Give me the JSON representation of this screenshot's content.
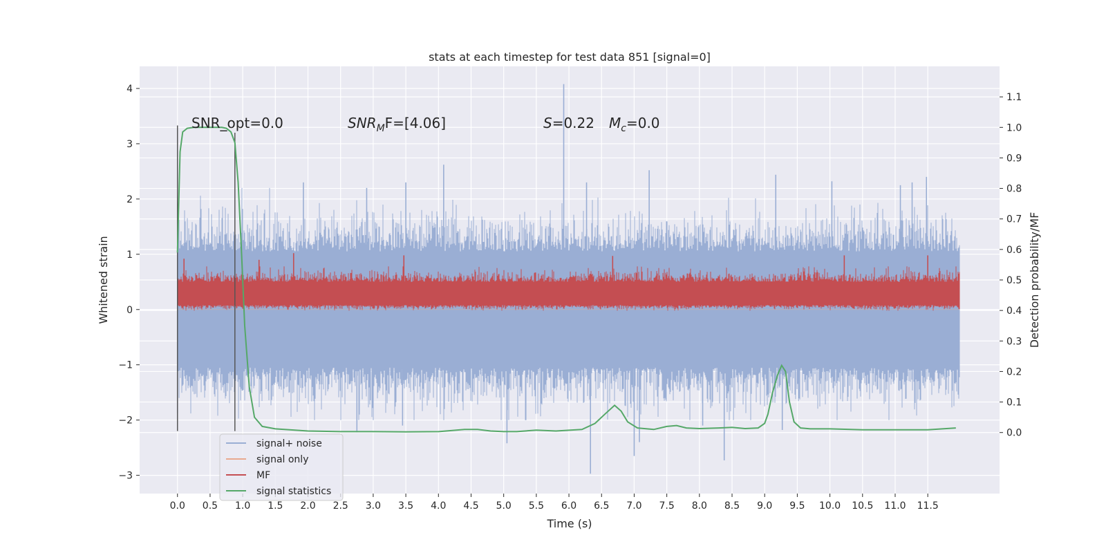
{
  "chart_data": {
    "type": "line",
    "title": "stats at each timestep for test data 851 [signal=0]",
    "xlabel": "Time (s)",
    "ylabel": "Whitened strain",
    "y2label": "Detection probability/MF",
    "xlim": [
      -0.58,
      12.6
    ],
    "ylim": [
      -3.33,
      4.4
    ],
    "y2lim": [
      -0.2,
      1.2
    ],
    "x_ticks": [
      0.0,
      0.5,
      1.0,
      1.5,
      2.0,
      2.5,
      3.0,
      3.5,
      4.0,
      4.5,
      5.0,
      5.5,
      6.0,
      6.5,
      7.0,
      7.5,
      8.0,
      8.5,
      9.0,
      9.5,
      10.0,
      10.5,
      11.0,
      11.5
    ],
    "x_tick_labels": [
      "0.0",
      "0.5",
      "1.0",
      "1.5",
      "2.0",
      "2.5",
      "3.0",
      "3.5",
      "4.0",
      "4.5",
      "5.0",
      "5.5",
      "6.0",
      "6.5",
      "7.0",
      "7.5",
      "8.0",
      "8.5",
      "9.0",
      "9.5",
      "10.0",
      "10.5",
      "11.0",
      "11.5"
    ],
    "y_ticks": [
      -3,
      -2,
      -1,
      0,
      1,
      2,
      3,
      4
    ],
    "y_tick_labels": [
      "−3",
      "−2",
      "−1",
      "0",
      "1",
      "2",
      "3",
      "4"
    ],
    "y2_ticks": [
      0.0,
      0.1,
      0.2,
      0.3,
      0.4,
      0.5,
      0.6,
      0.7,
      0.8,
      0.9,
      1.0,
      1.1
    ],
    "y2_tick_labels": [
      "0.0",
      "0.1",
      "0.2",
      "0.3",
      "0.4",
      "0.5",
      "0.6",
      "0.7",
      "0.8",
      "0.9",
      "1.0",
      "1.1"
    ],
    "grid": true,
    "legend_position": "lower-left",
    "colors": {
      "background": "#eaeaf2",
      "grid": "#ffffff",
      "signal_noise": "#9aaed4",
      "signal_only": "#e8a98e",
      "mf": "#c44e52",
      "statistics": "#55a868",
      "marker": "#555555"
    },
    "annotations": {
      "snr_opt": "SNR_opt=0.0",
      "snr_mf_prefix": "SNR",
      "snr_mf_sub": "M",
      "snr_mf_suffix": "F=[4.06]",
      "s_stat_var": "S",
      "s_stat_val": "=0.22",
      "mc_var": "M",
      "mc_sub": "c",
      "mc_val": "=0.0"
    },
    "series": [
      {
        "name": "signal+ noise",
        "axis": "left",
        "description_envelope": {
          "x_range": [
            0.0,
            11.99
          ],
          "typical_low": -1.2,
          "typical_high": 1.3
        },
        "peaks": [
          {
            "x": 5.92,
            "y": 4.08
          },
          {
            "x": 4.08,
            "y": 2.62
          },
          {
            "x": 9.17,
            "y": 2.44
          },
          {
            "x": 7.23,
            "y": 2.52
          },
          {
            "x": 11.48,
            "y": 2.4
          },
          {
            "x": 10.03,
            "y": 2.32
          },
          {
            "x": 1.93,
            "y": 2.3
          },
          {
            "x": 3.5,
            "y": 2.3
          },
          {
            "x": 6.27,
            "y": 2.3
          },
          {
            "x": 11.08,
            "y": 2.25
          },
          {
            "x": 11.26,
            "y": 2.3
          },
          {
            "x": 2.9,
            "y": 2.2
          },
          {
            "x": 6.33,
            "y": -2.97
          },
          {
            "x": 8.38,
            "y": -2.73
          },
          {
            "x": 7.0,
            "y": -2.65
          },
          {
            "x": 5.05,
            "y": -2.42
          },
          {
            "x": 7.08,
            "y": -2.4
          },
          {
            "x": 2.75,
            "y": -2.22
          },
          {
            "x": 3.45,
            "y": -2.1
          },
          {
            "x": 8.05,
            "y": -2.1
          },
          {
            "x": 0.0,
            "y": -1.88
          },
          {
            "x": 9.27,
            "y": -2.18
          }
        ]
      },
      {
        "name": "signal only",
        "axis": "left",
        "values_note": "",
        "x": [
          0.0,
          11.99
        ],
        "y": [
          0.0,
          0.0
        ]
      },
      {
        "name": "MF",
        "axis": "left",
        "description_envelope": {
          "x_range": [
            0.0,
            11.99
          ],
          "typical_low": 0.02,
          "typical_high": 0.6
        },
        "peaks": [
          {
            "x": 1.78,
            "y": 1.02
          },
          {
            "x": 6.67,
            "y": 0.97
          },
          {
            "x": 3.47,
            "y": 0.98
          },
          {
            "x": 1.25,
            "y": 0.9
          },
          {
            "x": 10.22,
            "y": 0.98
          },
          {
            "x": 11.5,
            "y": 0.98
          },
          {
            "x": 0.1,
            "y": 0.92
          }
        ]
      },
      {
        "name": "signal statistics",
        "axis": "right",
        "x": [
          0.0,
          0.04,
          0.08,
          0.15,
          0.25,
          0.4,
          0.55,
          0.68,
          0.75,
          0.82,
          0.88,
          0.93,
          0.98,
          1.03,
          1.1,
          1.18,
          1.3,
          1.5,
          2.0,
          2.5,
          3.0,
          3.5,
          4.0,
          4.4,
          4.6,
          4.8,
          5.0,
          5.2,
          5.5,
          5.8,
          6.2,
          6.4,
          6.55,
          6.7,
          6.8,
          6.9,
          7.05,
          7.3,
          7.5,
          7.65,
          7.8,
          8.0,
          8.3,
          8.5,
          8.7,
          8.9,
          9.0,
          9.05,
          9.12,
          9.2,
          9.26,
          9.32,
          9.38,
          9.45,
          9.55,
          9.7,
          10.0,
          10.5,
          11.0,
          11.5,
          11.93
        ],
        "y": [
          0.59,
          0.92,
          0.985,
          0.997,
          1.0,
          1.0,
          1.0,
          1.0,
          0.997,
          0.985,
          0.95,
          0.82,
          0.6,
          0.35,
          0.15,
          0.05,
          0.02,
          0.012,
          0.005,
          0.003,
          0.003,
          0.002,
          0.003,
          0.01,
          0.01,
          0.005,
          0.003,
          0.003,
          0.008,
          0.005,
          0.01,
          0.03,
          0.06,
          0.089,
          0.07,
          0.035,
          0.015,
          0.01,
          0.02,
          0.023,
          0.015,
          0.013,
          0.015,
          0.017,
          0.013,
          0.015,
          0.03,
          0.06,
          0.13,
          0.19,
          0.22,
          0.2,
          0.1,
          0.035,
          0.015,
          0.012,
          0.012,
          0.009,
          0.009,
          0.009,
          0.015
        ]
      }
    ],
    "vertical_markers": [
      {
        "x": 0.0,
        "y_from": -2.2,
        "y_to": 3.33
      },
      {
        "x": 0.88,
        "y_from": -2.2,
        "y_to": 3.2
      }
    ],
    "legend": [
      {
        "label": "signal+ noise",
        "series": "signal+ noise"
      },
      {
        "label": "signal only",
        "series": "signal only"
      },
      {
        "label": "MF",
        "series": "MF"
      },
      {
        "label": "signal statistics",
        "series": "signal statistics"
      }
    ]
  }
}
